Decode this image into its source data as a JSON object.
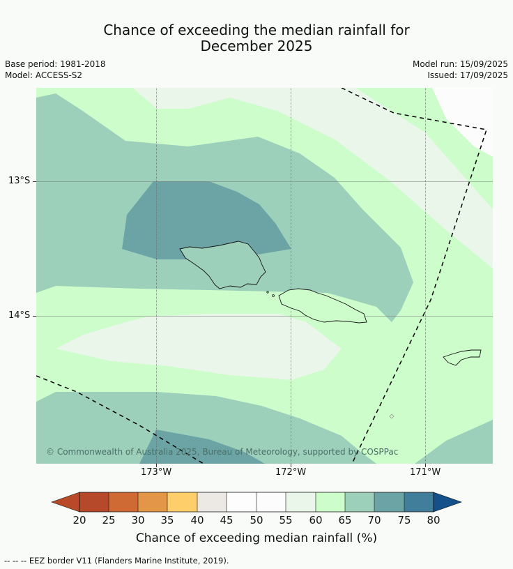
{
  "title_line1": "Chance of exceeding the median rainfall for",
  "title_line2": "December 2025",
  "meta": {
    "base_period": "Base period: 1981-2018",
    "model": "Model: ACCESS-S2",
    "model_run": "Model run: 15/09/2025",
    "issued": "Issued: 17/09/2025"
  },
  "axes": {
    "lat_labels": [
      "13°S",
      "14°S"
    ],
    "lon_labels": [
      "173°W",
      "172°W",
      "171°W"
    ]
  },
  "copyright": "© Commonwealth of Australia 2025, Bureau of Meteorology, supported by COSPPac",
  "colorbar": {
    "ticks": [
      "20",
      "25",
      "30",
      "35",
      "40",
      "45",
      "50",
      "55",
      "60",
      "65",
      "70",
      "75",
      "80"
    ],
    "label": "Chance of exceeding median rainfall (%)",
    "colors": {
      "lt20": "#b84a2a",
      "20-25": "#b5492a",
      "25-30": "#d06a35",
      "30-35": "#e39548",
      "35-40": "#fece6a",
      "40-45": "#ece8e4",
      "45-50": "#fdfdfd",
      "50-55": "#fcfcfc",
      "55-60": "#e9f6e9",
      "60-65": "#ccfdca",
      "65-70": "#9dd0bb",
      "70-75": "#6ca4a6",
      "75-80": "#417e9b",
      "gt80": "#14508a"
    }
  },
  "footer": "-- -- -- EEZ border V11 (Flanders Marine Institute, 2019)."
}
